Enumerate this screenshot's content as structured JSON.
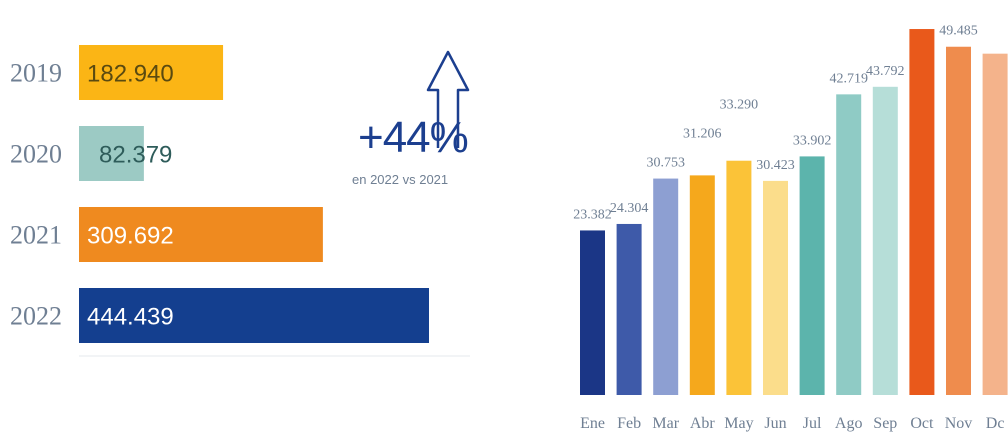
{
  "chart_data": [
    {
      "type": "bar",
      "orientation": "horizontal",
      "categories": [
        "2019",
        "2020",
        "2021",
        "2022"
      ],
      "values": [
        182940,
        82379,
        309692,
        444439
      ],
      "value_labels": [
        "182.940",
        "82.379",
        "309.692",
        "444.439"
      ],
      "colors": [
        "#fbb515",
        "#9ccac4",
        "#ef8a1f",
        "#143f8f"
      ],
      "label_colors": [
        "#5a4a10",
        "#2e5c5a",
        "#ffffff",
        "#ffffff"
      ],
      "xlim": [
        0,
        500000
      ]
    },
    {
      "type": "bar",
      "categories": [
        "Ene",
        "Feb",
        "Mar",
        "Abr",
        "May",
        "Jun",
        "Jul",
        "Ago",
        "Sep",
        "Oct",
        "Nov",
        "Dc"
      ],
      "values": [
        23382,
        24304,
        30753,
        31206,
        33290,
        30423,
        33902,
        42719,
        43792,
        52000,
        49485,
        48500
      ],
      "value_labels": [
        "23.382",
        "24.304",
        "30.753",
        "31.206",
        "33.290",
        "30.423",
        "33.902",
        "42.719",
        "43.792",
        "",
        "49.485",
        ""
      ],
      "colors": [
        "#1b3686",
        "#3e5aa9",
        "#8d9fd2",
        "#f5a81c",
        "#fbc338",
        "#fbdd8b",
        "#5cb4ac",
        "#8fcbc5",
        "#b6ded8",
        "#e9591b",
        "#ef8c4d",
        "#f4b38b"
      ],
      "ylim": [
        0,
        53000
      ]
    }
  ],
  "callout": {
    "value": "+44%",
    "caption": "en 2022 vs 2021",
    "color": "#1c3f8f"
  }
}
